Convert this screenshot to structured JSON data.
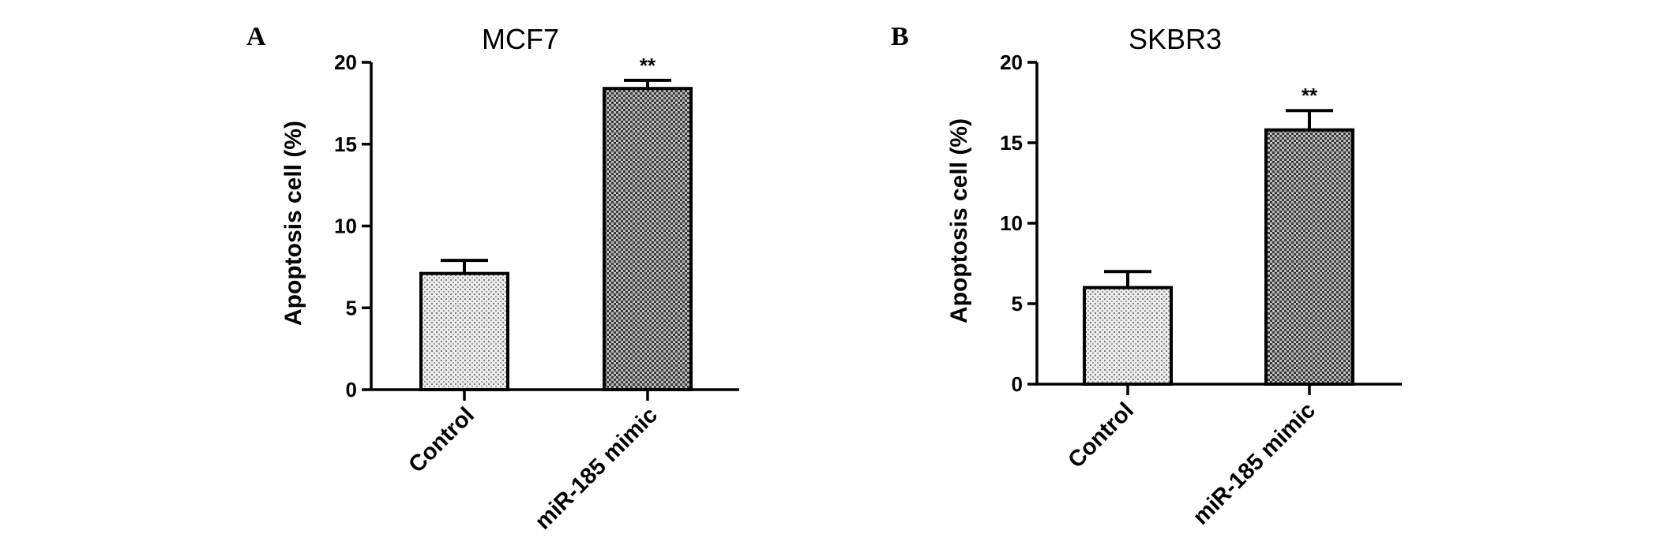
{
  "chart_data": [
    {
      "type": "bar",
      "panel": "A",
      "title": "MCF7",
      "ylabel": "Apoptosis cell (%)",
      "xlabel": "",
      "ylim": [
        0,
        20
      ],
      "yticks": [
        "0",
        "5",
        "10",
        "15",
        "20"
      ],
      "categories": [
        "Control",
        "miR-185 mimic"
      ],
      "values": [
        7.1,
        18.4
      ],
      "errors": [
        0.8,
        0.5
      ],
      "annotations": [
        "",
        "**"
      ],
      "fill_patterns": [
        "light-stipple",
        "dark-crosshatch"
      ],
      "grid": false
    },
    {
      "type": "bar",
      "panel": "B",
      "title": "SKBR3",
      "ylabel": "Apoptosis cell (%)",
      "xlabel": "",
      "ylim": [
        0,
        20
      ],
      "yticks": [
        "0",
        "5",
        "10",
        "15",
        "20"
      ],
      "categories": [
        "Control",
        "miR-185 mimic"
      ],
      "values": [
        6.0,
        15.8
      ],
      "errors": [
        1.0,
        1.2
      ],
      "annotations": [
        "",
        "**"
      ],
      "fill_patterns": [
        "light-stipple",
        "dark-crosshatch"
      ],
      "grid": false
    }
  ]
}
